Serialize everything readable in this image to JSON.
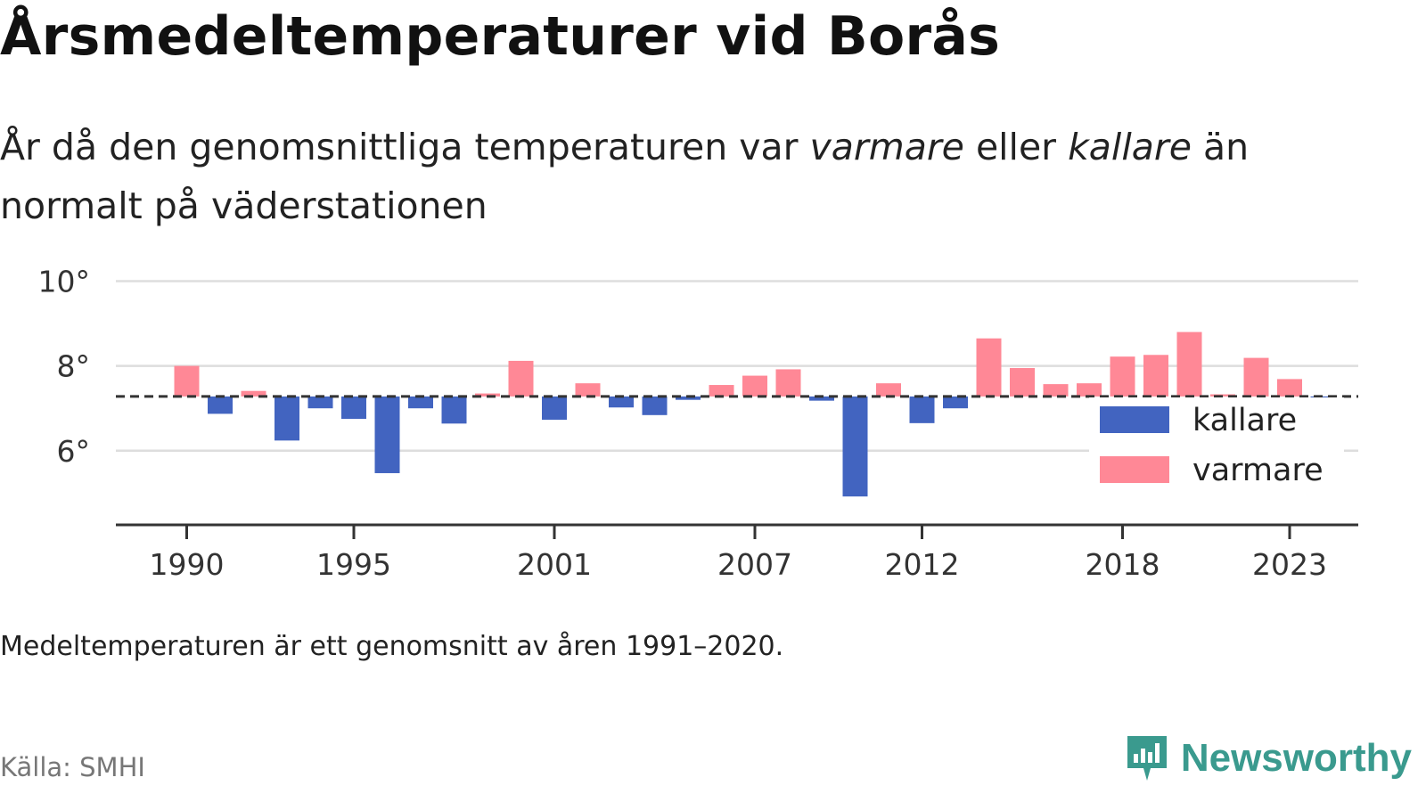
{
  "title": "Årsmedeltemperaturer vid Borås",
  "subtitle": {
    "part1": "År då den genomsnittliga temperaturen var ",
    "em1": "varmare",
    "part2": " eller ",
    "em2": "kallare",
    "part3": " än normalt på väderstationen"
  },
  "note": "Medeltemperaturen är ett genomsnitt av åren 1991–2020.",
  "source": "Källa: SMHI",
  "brand": {
    "name": "Newsworthy",
    "color": "#3a9a8e"
  },
  "colors": {
    "kallare": "#4264c0",
    "varmare": "#ff8896",
    "grid": "#dddddd",
    "axis": "#333333",
    "reference_line": "#333333"
  },
  "chart_data": {
    "type": "bar",
    "baseline": 7.28,
    "baseline_style": "dashed",
    "ylim": [
      4.25,
      10.2
    ],
    "yticks": [
      6,
      8,
      10
    ],
    "ytick_labels": [
      "6°",
      "8°",
      "10°"
    ],
    "xticks": [
      1990,
      1995,
      2001,
      2007,
      2012,
      2018,
      2023
    ],
    "xtick_labels": [
      "1990",
      "1995",
      "2001",
      "2007",
      "2012",
      "2018",
      "2023"
    ],
    "grid": true,
    "legend_position": "right",
    "legend": [
      {
        "key": "kallare",
        "label": "kallare"
      },
      {
        "key": "varmare",
        "label": "varmare"
      }
    ],
    "categories": [
      1990,
      1991,
      1992,
      1993,
      1994,
      1995,
      1996,
      1997,
      1998,
      1999,
      2000,
      2001,
      2002,
      2003,
      2004,
      2005,
      2006,
      2007,
      2008,
      2009,
      2010,
      2011,
      2012,
      2013,
      2014,
      2015,
      2016,
      2017,
      2018,
      2019,
      2020,
      2021,
      2022,
      2023,
      2024
    ],
    "values": [
      8.0,
      6.87,
      7.41,
      6.24,
      7.0,
      6.75,
      5.47,
      7.0,
      6.64,
      7.35,
      8.12,
      6.73,
      7.59,
      7.02,
      6.84,
      7.2,
      7.55,
      7.77,
      7.92,
      7.18,
      4.92,
      7.59,
      6.65,
      7.0,
      8.65,
      7.95,
      7.57,
      7.59,
      8.22,
      8.26,
      8.8,
      7.33,
      8.19,
      7.69,
      7.25
    ]
  }
}
